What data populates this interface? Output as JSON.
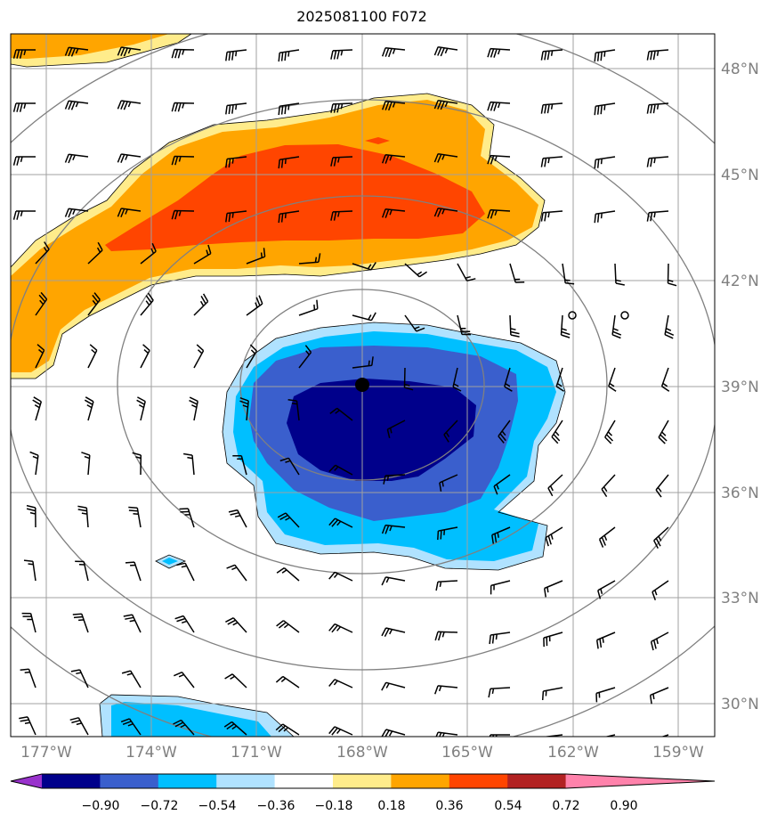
{
  "title": "2025081100 F072",
  "lat_labels": [
    "48°N",
    "45°N",
    "42°N",
    "39°N",
    "36°N",
    "33°N",
    "30°N"
  ],
  "lon_labels": [
    "177°W",
    "174°W",
    "171°W",
    "168°W",
    "165°W",
    "162°W",
    "159°W"
  ],
  "colorbar": {
    "ticks": [
      "−0.90",
      "−0.72",
      "−0.54",
      "−0.36",
      "−0.18",
      "0.18",
      "0.36",
      "0.54",
      "0.72",
      "0.90"
    ],
    "colors": [
      "#9932cc",
      "#00008b",
      "#3a5fcd",
      "#00bfff",
      "#b0e2ff",
      "#ffffff",
      "#ffec8b",
      "#ffa500",
      "#ff4500",
      "#b22222",
      "#ff82ab"
    ]
  },
  "colors": {
    "grid": "#a0a0a0",
    "contour": "#808080",
    "center": "#000000"
  },
  "chart_data": {
    "type": "heatmap",
    "title": "2025081100 F072",
    "lon_range": [
      -178,
      -158
    ],
    "lat_range": [
      29,
      49
    ],
    "center_marker": {
      "lon": -168,
      "lat": 39
    },
    "levels": [
      -0.9,
      -0.72,
      -0.54,
      -0.36,
      -0.18,
      0.18,
      0.36,
      0.54,
      0.72,
      0.9
    ],
    "grid": true
  }
}
